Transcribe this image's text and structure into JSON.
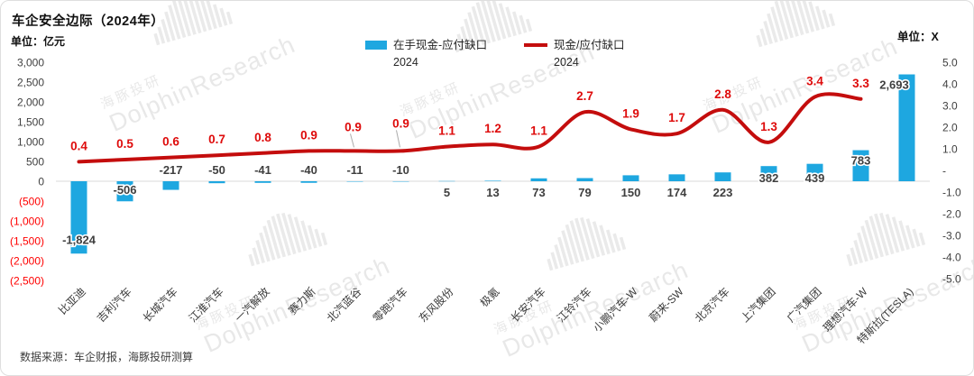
{
  "title": "车企安全边际（2024年）",
  "unit_left": "单位：亿元",
  "unit_right": "单位：X",
  "legend": {
    "bar_label": "在手现金-应付缺口",
    "bar_year": "2024",
    "line_label": "现金/应付缺口",
    "line_year": "2024"
  },
  "footer": "数据来源：车企财报，海豚投研测算",
  "watermark": {
    "cn": "海豚投研",
    "en": "DolphinResearch"
  },
  "colors": {
    "bar": "#1EA7E0",
    "line": "#C40D0D",
    "line_label": "#DE0B0B",
    "neg_tick": "#FF0000",
    "text": "#3F3F3F",
    "axis_line": "#D9D9D9"
  },
  "chart_data": {
    "type": "bar+line combo",
    "categories": [
      "比亚迪",
      "吉利汽车",
      "长城汽车",
      "江淮汽车",
      "一汽解放",
      "赛力斯",
      "北汽蓝谷",
      "零跑汽车",
      "东风股份",
      "极氪",
      "长安汽车",
      "江铃汽车",
      "小鹏汽车-W",
      "蔚来-SW",
      "北京汽车",
      "上汽集团",
      "广汽集团",
      "理想汽车-W",
      "特斯拉(TESLA)"
    ],
    "series": [
      {
        "name": "在手现金-应付缺口 2024",
        "type": "bar",
        "axis": "left",
        "values": [
          -1824,
          -506,
          -217,
          -50,
          -41,
          -40,
          -11,
          -10,
          5,
          13,
          73,
          79,
          150,
          174,
          223,
          382,
          439,
          783,
          2693
        ],
        "labels": [
          "-1,824",
          "-506",
          "-217",
          "-50",
          "-41",
          "-40",
          "-11",
          "-10",
          "5",
          "13",
          "73",
          "79",
          "150",
          "174",
          "223",
          "382",
          "439",
          "783",
          "2,693"
        ]
      },
      {
        "name": "现金/应付缺口 2024",
        "type": "line",
        "axis": "right",
        "values": [
          0.4,
          0.5,
          0.6,
          0.7,
          0.8,
          0.9,
          0.9,
          0.9,
          1.1,
          1.2,
          1.1,
          2.7,
          1.9,
          1.7,
          2.8,
          1.3,
          3.4,
          3.3,
          null
        ],
        "labels": [
          "0.4",
          "0.5",
          "0.6",
          "0.7",
          "0.8",
          "0.9",
          "0.9",
          "0.9",
          "1.1",
          "1.2",
          "1.1",
          "2.7",
          "1.9",
          "1.7",
          "2.8",
          "1.3",
          "3.4",
          "3.3",
          null
        ]
      }
    ],
    "left_axis": {
      "title": "单位：亿元",
      "max": 3000,
      "min": -2500,
      "step": 500,
      "ticks": [
        "3,000",
        "2,500",
        "2,000",
        "1,500",
        "1,000",
        "500",
        "0",
        "(500)",
        "(1,000)",
        "(1,500)",
        "(2,000)",
        "(2,500)"
      ]
    },
    "right_axis": {
      "title": "单位：X",
      "max": 5.0,
      "min": -5.0,
      "step": 1.0,
      "ticks": [
        "5.0",
        "4.0",
        "3.0",
        "2.0",
        "1.0",
        "-",
        "-1.0",
        "-2.0",
        "-3.0",
        "-4.0",
        "-5.0"
      ]
    },
    "grid": "zero-line only",
    "legend_position": "top-center"
  }
}
